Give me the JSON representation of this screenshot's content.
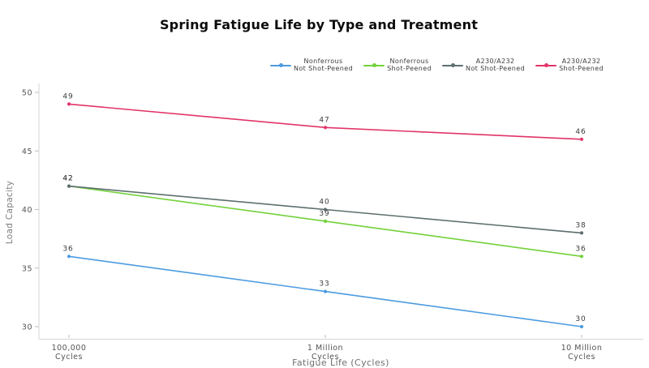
{
  "chart_data": {
    "type": "line",
    "title": "Spring Fatigue Life by Type and Treatment",
    "xlabel": "Fatigue Life (Cycles)",
    "ylabel": "Load Capacity",
    "categories": [
      [
        "100,000",
        "Cycles"
      ],
      [
        "1 Million",
        "Cycles"
      ],
      [
        "10 Million",
        "Cycles"
      ]
    ],
    "y_ticks": [
      30,
      35,
      40,
      45,
      50
    ],
    "ylim": [
      30,
      50
    ],
    "grid": false,
    "legend_position": "top-center",
    "colors": {
      "blue": "#4c9be0",
      "green": "#73d13a",
      "gray": "#5e6e6e",
      "pink": "#e13468",
      "axis_line": "#d6d6d6",
      "tick_mark": "#bbbbbb"
    },
    "series": [
      {
        "name": "Nonferrous Not Shot-Peened",
        "label_line1": "Nonferrous",
        "label_line2": "Not Shot-Peened",
        "color": "#4c9be0",
        "values": [
          36,
          33,
          30
        ]
      },
      {
        "name": "Nonferrous Shot-Peened",
        "label_line1": "Nonferrous",
        "label_line2": "Shot-Peened",
        "color": "#73d13a",
        "values": [
          42,
          39,
          36
        ]
      },
      {
        "name": "A230/A232 Not Shot-Peened",
        "label_line1": "A230/A232",
        "label_line2": "Not Shot-Peened",
        "color": "#5e6e6e",
        "values": [
          42,
          40,
          38
        ]
      },
      {
        "name": "A230/A232 Shot-Peened",
        "label_line1": "A230/A232",
        "label_line2": "Shot-Peened",
        "color": "#e13468",
        "values": [
          49,
          47,
          46
        ]
      }
    ]
  }
}
